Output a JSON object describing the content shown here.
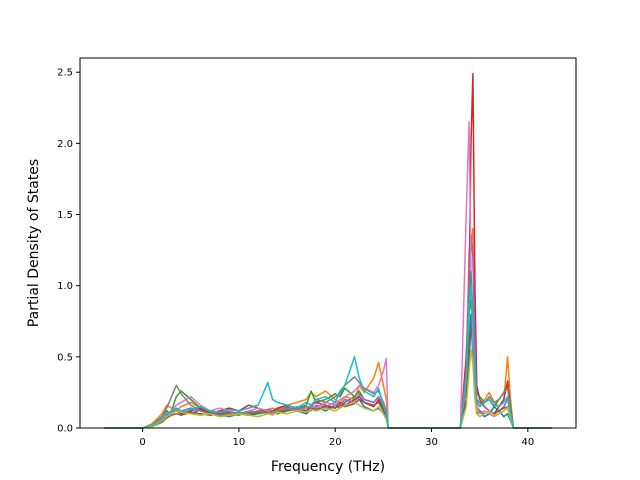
{
  "chart_data": {
    "type": "line",
    "title": "",
    "xlabel": "Frequency (THz)",
    "ylabel": "Partial Density of States",
    "xlim": [
      -6.5,
      45
    ],
    "ylim": [
      0,
      2.6
    ],
    "xticks": [
      0,
      10,
      20,
      30,
      40
    ],
    "yticks": [
      0.0,
      0.5,
      1.0,
      1.5,
      2.0,
      2.5
    ],
    "xtick_labels": [
      "0",
      "10",
      "20",
      "30",
      "40"
    ],
    "ytick_labels": [
      "0.0",
      "0.5",
      "1.0",
      "1.5",
      "2.0",
      "2.5"
    ],
    "grid": false,
    "legend": "none",
    "x": [
      -4.0,
      -2.0,
      0.0,
      1.0,
      2.0,
      2.5,
      3.0,
      3.5,
      4.0,
      5.0,
      6.0,
      7.0,
      8.0,
      9.0,
      10.0,
      11.0,
      12.0,
      13.0,
      13.5,
      14.0,
      15.0,
      16.0,
      17.0,
      17.5,
      18.0,
      19.0,
      20.0,
      20.5,
      21.0,
      22.0,
      22.5,
      23.0,
      24.0,
      24.5,
      25.0,
      25.3,
      25.5,
      26.0,
      30.0,
      33.0,
      33.6,
      33.9,
      34.1,
      34.3,
      34.5,
      34.7,
      35.0,
      35.5,
      36.0,
      36.5,
      37.0,
      37.5,
      37.9,
      38.2,
      38.5,
      39.0,
      40.0,
      42.5
    ],
    "series": [
      {
        "color": "#1f77b4",
        "values": [
          0,
          0,
          0,
          0.02,
          0.08,
          0.12,
          0.1,
          0.14,
          0.12,
          0.1,
          0.13,
          0.11,
          0.09,
          0.08,
          0.1,
          0.09,
          0.1,
          0.12,
          0.11,
          0.13,
          0.15,
          0.12,
          0.1,
          0.13,
          0.15,
          0.12,
          0.16,
          0.14,
          0.18,
          0.22,
          0.2,
          0.15,
          0.12,
          0.14,
          0.1,
          0.08,
          0,
          0,
          0,
          0,
          0.2,
          0.6,
          0.8,
          0.5,
          0.3,
          0.1,
          0.12,
          0.08,
          0.1,
          0.15,
          0.12,
          0.08,
          0.1,
          0.05,
          0,
          0,
          0,
          0
        ]
      },
      {
        "color": "#ff7f0e",
        "values": [
          0,
          0,
          0,
          0.03,
          0.1,
          0.16,
          0.14,
          0.12,
          0.15,
          0.18,
          0.14,
          0.12,
          0.1,
          0.09,
          0.11,
          0.1,
          0.12,
          0.13,
          0.14,
          0.12,
          0.16,
          0.18,
          0.2,
          0.25,
          0.22,
          0.26,
          0.2,
          0.18,
          0.22,
          0.2,
          0.3,
          0.25,
          0.35,
          0.46,
          0.3,
          0.2,
          0,
          0,
          0,
          0,
          0.4,
          1.25,
          1.3,
          1.4,
          0.5,
          0.2,
          0.15,
          0.2,
          0.25,
          0.18,
          0.15,
          0.2,
          0.5,
          0.2,
          0,
          0,
          0,
          0
        ]
      },
      {
        "color": "#2ca02c",
        "values": [
          0,
          0,
          0,
          0.02,
          0.06,
          0.1,
          0.12,
          0.22,
          0.26,
          0.2,
          0.14,
          0.1,
          0.12,
          0.1,
          0.09,
          0.11,
          0.1,
          0.11,
          0.12,
          0.1,
          0.12,
          0.14,
          0.16,
          0.26,
          0.18,
          0.2,
          0.24,
          0.22,
          0.28,
          0.22,
          0.26,
          0.2,
          0.18,
          0.22,
          0.14,
          0.1,
          0,
          0,
          0,
          0,
          0.3,
          0.8,
          0.9,
          0.7,
          0.4,
          0.25,
          0.22,
          0.18,
          0.2,
          0.15,
          0.2,
          0.25,
          0.3,
          0.15,
          0,
          0,
          0,
          0
        ]
      },
      {
        "color": "#d62728",
        "values": [
          0,
          0,
          0,
          0.01,
          0.05,
          0.08,
          0.1,
          0.12,
          0.1,
          0.12,
          0.14,
          0.1,
          0.12,
          0.14,
          0.12,
          0.16,
          0.14,
          0.1,
          0.12,
          0.14,
          0.16,
          0.14,
          0.12,
          0.16,
          0.18,
          0.16,
          0.14,
          0.18,
          0.16,
          0.2,
          0.22,
          0.18,
          0.15,
          0.2,
          0.12,
          0.08,
          0,
          0,
          0,
          0,
          0.5,
          1.0,
          2.0,
          2.49,
          1.0,
          0.3,
          0.2,
          0.15,
          0.12,
          0.1,
          0.15,
          0.2,
          0.33,
          0.12,
          0,
          0,
          0,
          0
        ]
      },
      {
        "color": "#9467bd",
        "values": [
          0,
          0,
          0,
          0.02,
          0.06,
          0.09,
          0.11,
          0.13,
          0.12,
          0.14,
          0.12,
          0.1,
          0.11,
          0.12,
          0.1,
          0.12,
          0.11,
          0.13,
          0.12,
          0.11,
          0.13,
          0.15,
          0.14,
          0.12,
          0.16,
          0.15,
          0.18,
          0.16,
          0.2,
          0.18,
          0.24,
          0.2,
          0.18,
          0.22,
          0.16,
          0.1,
          0,
          0,
          0,
          0,
          0.3,
          1.1,
          1.35,
          1.2,
          0.6,
          0.2,
          0.18,
          0.15,
          0.12,
          0.1,
          0.12,
          0.15,
          0.2,
          0.1,
          0,
          0,
          0,
          0
        ]
      },
      {
        "color": "#8c564b",
        "values": [
          0,
          0,
          0,
          0.01,
          0.04,
          0.07,
          0.09,
          0.1,
          0.09,
          0.11,
          0.1,
          0.09,
          0.1,
          0.11,
          0.1,
          0.09,
          0.11,
          0.12,
          0.1,
          0.11,
          0.12,
          0.13,
          0.12,
          0.14,
          0.13,
          0.15,
          0.14,
          0.16,
          0.15,
          0.17,
          0.2,
          0.18,
          0.16,
          0.18,
          0.12,
          0.08,
          0,
          0,
          0,
          0,
          0.2,
          0.5,
          0.7,
          0.6,
          0.3,
          0.15,
          0.12,
          0.1,
          0.12,
          0.1,
          0.12,
          0.14,
          0.15,
          0.08,
          0,
          0,
          0,
          0
        ]
      },
      {
        "color": "#e377c2",
        "values": [
          0,
          0,
          0,
          0.02,
          0.07,
          0.1,
          0.12,
          0.16,
          0.18,
          0.22,
          0.16,
          0.12,
          0.14,
          0.12,
          0.1,
          0.12,
          0.14,
          0.12,
          0.1,
          0.12,
          0.14,
          0.12,
          0.14,
          0.16,
          0.14,
          0.18,
          0.16,
          0.2,
          0.22,
          0.26,
          0.3,
          0.28,
          0.25,
          0.3,
          0.4,
          0.49,
          0,
          0,
          0,
          0,
          1.5,
          2.15,
          1.1,
          0.6,
          0.3,
          0.15,
          0.1,
          0.12,
          0.1,
          0.08,
          0.1,
          0.12,
          0.15,
          0.08,
          0,
          0,
          0,
          0
        ]
      },
      {
        "color": "#7f7f7f",
        "values": [
          0,
          0,
          0,
          0.02,
          0.08,
          0.14,
          0.22,
          0.3,
          0.24,
          0.16,
          0.12,
          0.1,
          0.09,
          0.1,
          0.11,
          0.1,
          0.12,
          0.1,
          0.11,
          0.12,
          0.14,
          0.13,
          0.15,
          0.14,
          0.2,
          0.18,
          0.22,
          0.24,
          0.3,
          0.36,
          0.32,
          0.28,
          0.24,
          0.26,
          0.18,
          0.12,
          0,
          0,
          0,
          0,
          0.4,
          0.9,
          1.1,
          0.8,
          0.35,
          0.18,
          0.15,
          0.18,
          0.22,
          0.18,
          0.2,
          0.25,
          0.28,
          0.12,
          0,
          0,
          0,
          0
        ]
      },
      {
        "color": "#bcbd22",
        "values": [
          0,
          0,
          0,
          0.01,
          0.05,
          0.08,
          0.1,
          0.12,
          0.11,
          0.1,
          0.09,
          0.1,
          0.08,
          0.09,
          0.1,
          0.09,
          0.08,
          0.1,
          0.09,
          0.11,
          0.1,
          0.12,
          0.11,
          0.13,
          0.12,
          0.14,
          0.12,
          0.14,
          0.16,
          0.18,
          0.16,
          0.14,
          0.12,
          0.15,
          0.1,
          0.06,
          0,
          0,
          0,
          0,
          0.15,
          0.4,
          0.55,
          0.45,
          0.2,
          0.1,
          0.08,
          0.1,
          0.12,
          0.09,
          0.1,
          0.12,
          0.14,
          0.06,
          0,
          0,
          0,
          0
        ]
      },
      {
        "color": "#17becf",
        "values": [
          0,
          0,
          0,
          0.02,
          0.06,
          0.1,
          0.12,
          0.14,
          0.12,
          0.13,
          0.15,
          0.12,
          0.11,
          0.13,
          0.12,
          0.14,
          0.16,
          0.32,
          0.2,
          0.18,
          0.16,
          0.14,
          0.18,
          0.16,
          0.2,
          0.22,
          0.18,
          0.26,
          0.3,
          0.5,
          0.35,
          0.26,
          0.22,
          0.28,
          0.16,
          0.1,
          0,
          0,
          0,
          0,
          0.35,
          0.85,
          1.0,
          0.75,
          0.35,
          0.18,
          0.15,
          0.18,
          0.2,
          0.16,
          0.15,
          0.18,
          0.22,
          0.1,
          0,
          0,
          0,
          0
        ]
      }
    ]
  }
}
